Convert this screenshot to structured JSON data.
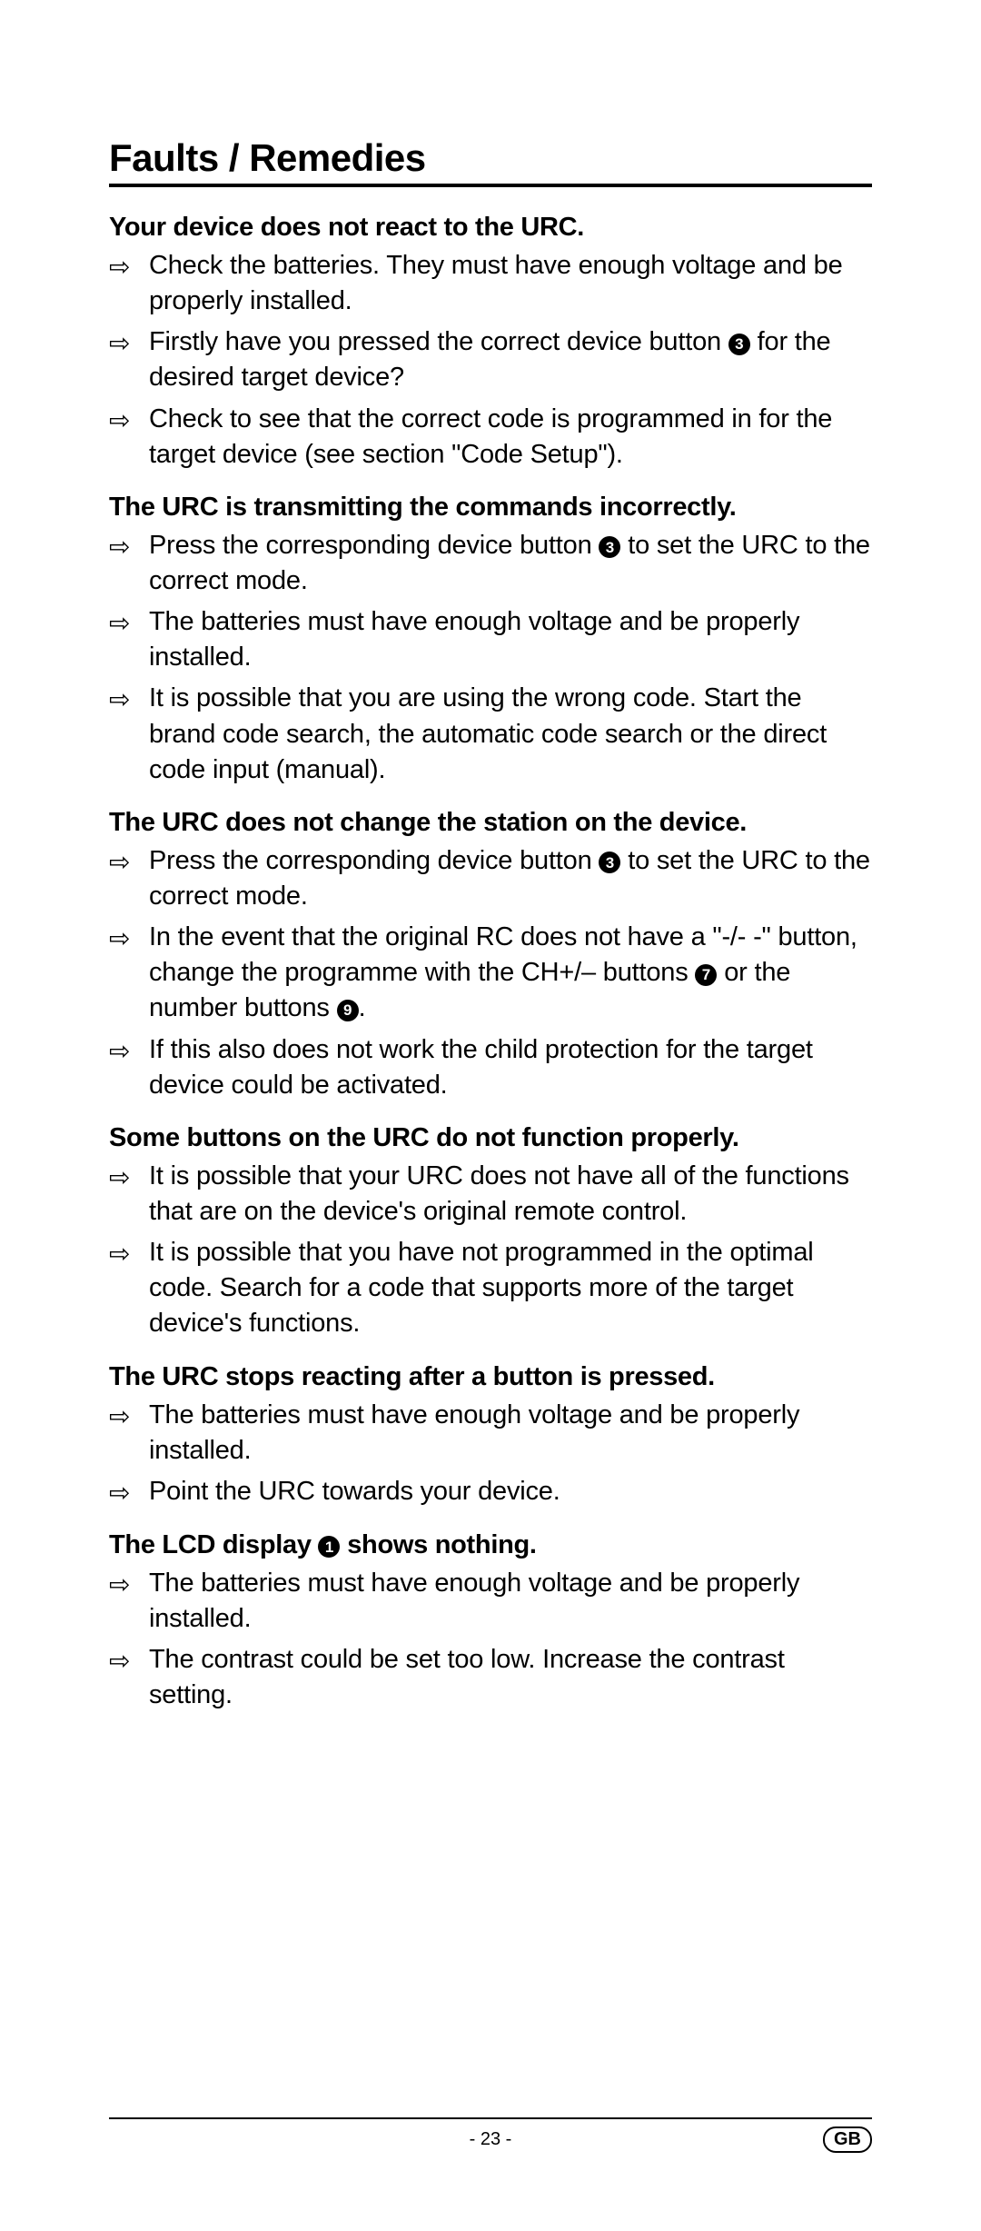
{
  "title": "Faults / Remedies",
  "arrow_glyph": "⇨",
  "sections": [
    {
      "heading": "Your device does not react to the URC.",
      "items": [
        {
          "segments": [
            {
              "t": "text",
              "v": "Check the batteries. They must have enough voltage and be properly installed."
            }
          ]
        },
        {
          "segments": [
            {
              "t": "text",
              "v": "Firstly have you pressed the correct device button "
            },
            {
              "t": "circ",
              "v": "3"
            },
            {
              "t": "text",
              "v": " for the desired target device?"
            }
          ]
        },
        {
          "segments": [
            {
              "t": "text",
              "v": "Check to see that the correct code is programmed in for the target device (see section \"Code Setup\")."
            }
          ]
        }
      ]
    },
    {
      "heading": "The URC is transmitting the commands incorrectly.",
      "items": [
        {
          "segments": [
            {
              "t": "text",
              "v": "Press the corresponding device button "
            },
            {
              "t": "circ",
              "v": "3"
            },
            {
              "t": "text",
              "v": " to set the URC to the correct mode."
            }
          ]
        },
        {
          "segments": [
            {
              "t": "text",
              "v": "The batteries must have enough voltage and be properly installed."
            }
          ]
        },
        {
          "segments": [
            {
              "t": "text",
              "v": "It is possible that you are using the wrong code. Start the brand code search, the automatic code search or the direct code input (manual)."
            }
          ]
        }
      ]
    },
    {
      "heading": "The URC does not change the station on the device.",
      "items": [
        {
          "segments": [
            {
              "t": "text",
              "v": "Press the corresponding device button "
            },
            {
              "t": "circ",
              "v": "3"
            },
            {
              "t": "text",
              "v": " to set the URC to the correct mode."
            }
          ]
        },
        {
          "segments": [
            {
              "t": "text",
              "v": "In the event that the original RC does not have a \"-/- -\" button, change the programme with the CH+/– buttons "
            },
            {
              "t": "circ",
              "v": "7"
            },
            {
              "t": "text",
              "v": " or the number buttons "
            },
            {
              "t": "circ",
              "v": "9"
            },
            {
              "t": "text",
              "v": "."
            }
          ]
        },
        {
          "segments": [
            {
              "t": "text",
              "v": "If this also does not work the child protection for the target device could be activated."
            }
          ]
        }
      ]
    },
    {
      "heading": "Some buttons on the URC do not function properly.",
      "items": [
        {
          "segments": [
            {
              "t": "text",
              "v": "It is possible that your URC does not have all of the functions that are on the device's original remote control."
            }
          ]
        },
        {
          "segments": [
            {
              "t": "text",
              "v": "It is possible that you have not programmed in the optimal code. Search for a code that supports more of the target device's functions."
            }
          ]
        }
      ]
    },
    {
      "heading": "The URC stops reacting after a button is pressed.",
      "items": [
        {
          "segments": [
            {
              "t": "text",
              "v": "The batteries must have enough voltage and be properly installed."
            }
          ]
        },
        {
          "segments": [
            {
              "t": "text",
              "v": "Point the URC towards your device."
            }
          ]
        }
      ]
    },
    {
      "heading_segments": [
        {
          "t": "text",
          "v": "The LCD display "
        },
        {
          "t": "circ",
          "v": "1"
        },
        {
          "t": "text",
          "v": " shows nothing."
        }
      ],
      "items": [
        {
          "segments": [
            {
              "t": "text",
              "v": "The batteries must have enough voltage and be properly installed."
            }
          ]
        },
        {
          "segments": [
            {
              "t": "text",
              "v": "The contrast could be set too low. Increase the contrast setting."
            }
          ]
        }
      ]
    }
  ],
  "footer": {
    "page": "- 23 -",
    "region": "GB"
  }
}
